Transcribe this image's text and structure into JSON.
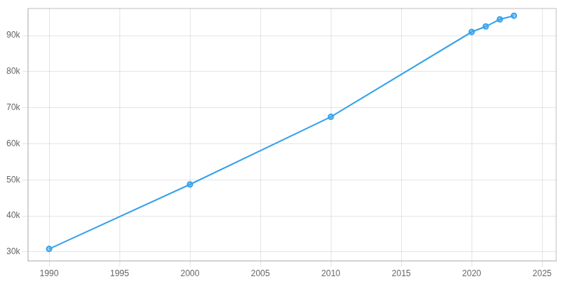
{
  "chart_data": {
    "type": "line",
    "x": [
      1990,
      2000,
      2010,
      2020,
      2021,
      2022,
      2023
    ],
    "values": [
      30843,
      48735,
      67460,
      91000,
      92522,
      94500,
      95500
    ],
    "marker": "circle",
    "xlim": [
      1988.5,
      2026
    ],
    "xticks": [
      1990,
      1995,
      2000,
      2005,
      2010,
      2015,
      2020,
      2025
    ],
    "ylim": [
      27500,
      97500
    ],
    "yticks": [
      {
        "value": 30000,
        "label": "30k"
      },
      {
        "value": 40000,
        "label": "40k"
      },
      {
        "value": 50000,
        "label": "50k"
      },
      {
        "value": 60000,
        "label": "60k"
      },
      {
        "value": 70000,
        "label": "70k"
      },
      {
        "value": 80000,
        "label": "80k"
      },
      {
        "value": 90000,
        "label": "90k"
      }
    ],
    "grid": true
  }
}
